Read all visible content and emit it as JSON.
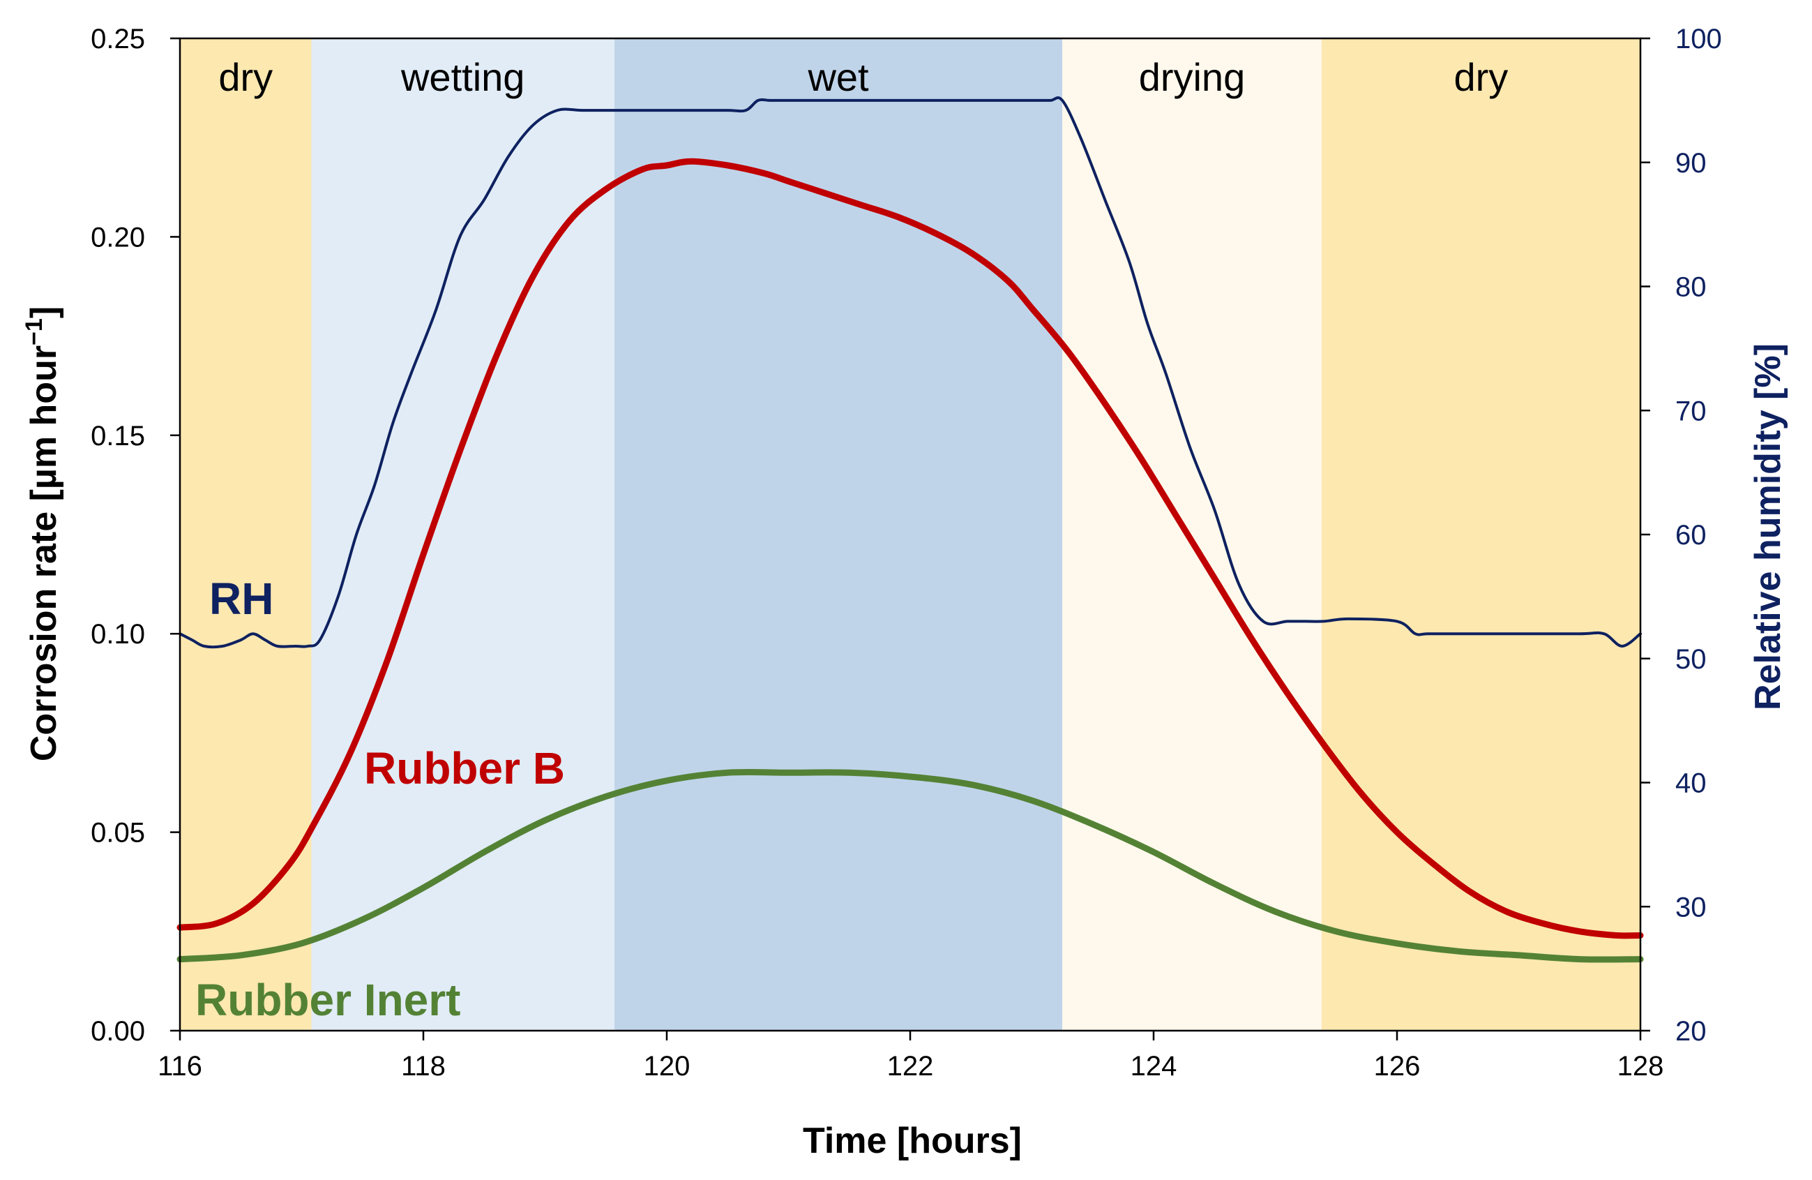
{
  "chart_data": {
    "type": "line",
    "xlabel": "Time [hours]",
    "ylabel": "Corrosion rate [µm hour",
    "ylabel_sup": "−1",
    "ylabel_close": "]",
    "y2label": "Relative humidity [%]",
    "xlim": [
      116,
      128
    ],
    "ylim": [
      0,
      0.25
    ],
    "y2lim": [
      20,
      100
    ],
    "x_ticks": [
      116,
      118,
      120,
      122,
      124,
      126,
      128
    ],
    "x_tick_labels": [
      "116",
      "118",
      "120",
      "122",
      "124",
      "126",
      "128"
    ],
    "y_ticks": [
      0,
      0.05,
      0.1,
      0.15,
      0.2,
      0.25
    ],
    "y_tick_labels": [
      "0.00",
      "0.05",
      "0.10",
      "0.15",
      "0.20",
      "0.25"
    ],
    "y2_ticks": [
      20,
      30,
      40,
      50,
      60,
      70,
      80,
      90,
      100
    ],
    "y2_tick_labels": [
      "20",
      "30",
      "40",
      "50",
      "60",
      "70",
      "80",
      "90",
      "100"
    ],
    "phases": [
      {
        "label": "dry",
        "start": 116.0,
        "end": 117.08,
        "color": "#fde8b0"
      },
      {
        "label": "wetting",
        "start": 117.08,
        "end": 119.57,
        "color": "#e1ecf6"
      },
      {
        "label": "wet",
        "start": 119.57,
        "end": 123.25,
        "color": "#c0d4e9"
      },
      {
        "label": "drying",
        "start": 123.25,
        "end": 125.38,
        "color": "#fef9ec"
      },
      {
        "label": "dry",
        "start": 125.38,
        "end": 128.0,
        "color": "#fde8b0"
      }
    ],
    "series": [
      {
        "name": "Rubber B",
        "axis": "left",
        "color": "#c00000",
        "x": [
          116.0,
          116.3,
          116.6,
          116.9,
          117.1,
          117.4,
          117.7,
          118.0,
          118.3,
          118.6,
          118.9,
          119.2,
          119.5,
          119.8,
          120.0,
          120.2,
          120.5,
          120.8,
          121.0,
          121.3,
          121.6,
          121.9,
          122.2,
          122.5,
          122.8,
          123.0,
          123.3,
          123.6,
          123.9,
          124.2,
          124.5,
          124.8,
          125.1,
          125.4,
          125.7,
          126.0,
          126.3,
          126.6,
          126.9,
          127.2,
          127.5,
          127.8,
          128.0
        ],
        "values": [
          0.026,
          0.027,
          0.032,
          0.042,
          0.052,
          0.07,
          0.093,
          0.12,
          0.146,
          0.17,
          0.19,
          0.204,
          0.212,
          0.217,
          0.218,
          0.219,
          0.218,
          0.216,
          0.214,
          0.211,
          0.208,
          0.205,
          0.201,
          0.196,
          0.189,
          0.182,
          0.171,
          0.158,
          0.144,
          0.129,
          0.114,
          0.099,
          0.085,
          0.072,
          0.06,
          0.05,
          0.042,
          0.035,
          0.03,
          0.027,
          0.025,
          0.024,
          0.024
        ]
      },
      {
        "name": "Rubber Inert",
        "axis": "left",
        "color": "#548235",
        "x": [
          116.0,
          116.5,
          117.0,
          117.5,
          118.0,
          118.5,
          119.0,
          119.5,
          120.0,
          120.5,
          121.0,
          121.5,
          122.0,
          122.5,
          123.0,
          123.5,
          124.0,
          124.5,
          125.0,
          125.5,
          126.0,
          126.5,
          127.0,
          127.5,
          128.0
        ],
        "values": [
          0.018,
          0.019,
          0.022,
          0.028,
          0.036,
          0.045,
          0.053,
          0.059,
          0.063,
          0.065,
          0.065,
          0.065,
          0.064,
          0.062,
          0.058,
          0.052,
          0.045,
          0.037,
          0.03,
          0.025,
          0.022,
          0.02,
          0.019,
          0.018,
          0.018
        ]
      },
      {
        "name": "RH",
        "axis": "right",
        "color": "#0e2160",
        "x": [
          116.0,
          116.1,
          116.2,
          116.35,
          116.5,
          116.6,
          116.7,
          116.8,
          116.95,
          117.05,
          117.15,
          117.3,
          117.45,
          117.6,
          117.75,
          117.9,
          118.1,
          118.3,
          118.5,
          118.7,
          118.9,
          119.1,
          119.3,
          119.5,
          119.6,
          119.8,
          120.0,
          120.2,
          120.5,
          120.65,
          120.75,
          120.85,
          121.0,
          121.5,
          122.0,
          122.5,
          123.0,
          123.15,
          123.25,
          123.4,
          123.6,
          123.8,
          123.95,
          124.1,
          124.3,
          124.5,
          124.7,
          124.9,
          125.1,
          125.25,
          125.4,
          125.6,
          126.0,
          126.15,
          126.25,
          126.5,
          127.0,
          127.5,
          127.7,
          127.85,
          128.0
        ],
        "values": [
          52,
          51.5,
          51,
          51,
          51.5,
          52,
          51.5,
          51,
          51,
          51,
          51.5,
          55,
          60,
          64,
          69,
          73,
          78,
          84,
          87,
          90.5,
          93,
          94.2,
          94.2,
          94.2,
          94.2,
          94.2,
          94.2,
          94.2,
          94.2,
          94.2,
          95,
          95,
          95,
          95,
          95,
          95,
          95,
          95,
          95,
          92,
          87,
          82,
          77,
          73,
          67,
          62,
          56,
          53,
          53,
          53,
          53,
          53.2,
          53,
          52,
          52,
          52,
          52,
          52,
          52,
          51,
          52
        ]
      }
    ],
    "series_labels": [
      {
        "text": "RH",
        "color": "#0e2160"
      },
      {
        "text": "Rubber B",
        "color": "#c00000"
      },
      {
        "text": "Rubber Inert",
        "color": "#548235"
      }
    ]
  }
}
